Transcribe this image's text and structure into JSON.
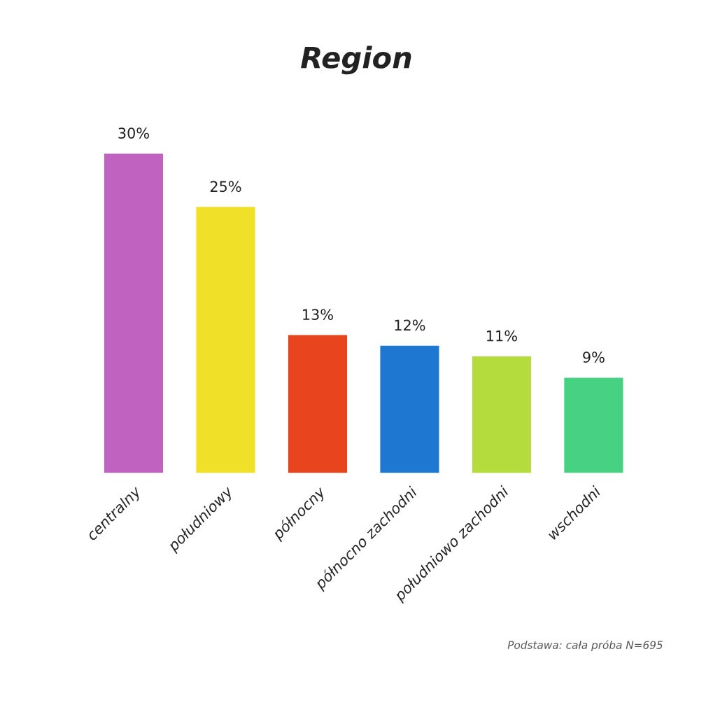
{
  "chart_data": {
    "type": "bar",
    "title": "Region",
    "categories": [
      "centralny",
      "południowy",
      "północny",
      "północno zachodni",
      "południowo zachodni",
      "wschodni"
    ],
    "values": [
      30,
      25,
      13,
      12,
      11,
      9
    ],
    "value_labels": [
      "30%",
      "25%",
      "13%",
      "12%",
      "11%",
      "9%"
    ],
    "colors": [
      "#c062c0",
      "#f0e028",
      "#e8441e",
      "#1e78d2",
      "#b4dc3c",
      "#46d282"
    ],
    "annotations": [
      "Podstawa: cała próba N=695"
    ],
    "grid": false,
    "legend": false
  }
}
